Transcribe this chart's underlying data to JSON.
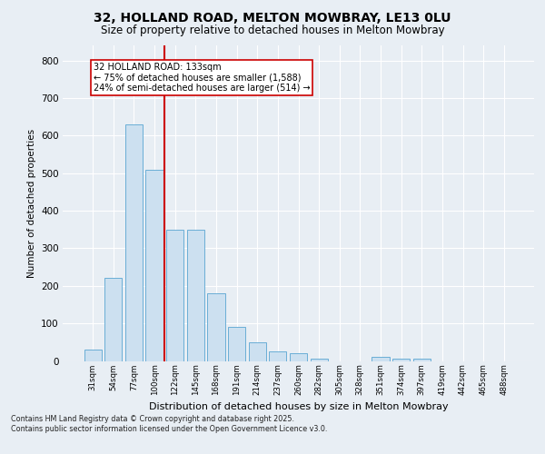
{
  "title": "32, HOLLAND ROAD, MELTON MOWBRAY, LE13 0LU",
  "subtitle": "Size of property relative to detached houses in Melton Mowbray",
  "xlabel": "Distribution of detached houses by size in Melton Mowbray",
  "ylabel": "Number of detached properties",
  "categories": [
    "31sqm",
    "54sqm",
    "77sqm",
    "100sqm",
    "122sqm",
    "145sqm",
    "168sqm",
    "191sqm",
    "214sqm",
    "237sqm",
    "260sqm",
    "282sqm",
    "305sqm",
    "328sqm",
    "351sqm",
    "374sqm",
    "397sqm",
    "419sqm",
    "442sqm",
    "465sqm",
    "488sqm"
  ],
  "values": [
    30,
    220,
    630,
    510,
    350,
    350,
    180,
    90,
    50,
    25,
    20,
    5,
    0,
    0,
    10,
    5,
    5,
    0,
    0,
    0,
    0
  ],
  "bar_color": "#cce0f0",
  "bar_edge_color": "#6aaed6",
  "vline_x": 3.5,
  "vline_color": "#cc0000",
  "annotation_text": "32 HOLLAND ROAD: 133sqm\n← 75% of detached houses are smaller (1,588)\n24% of semi-detached houses are larger (514) →",
  "annotation_box_color": "#cc0000",
  "annotation_text_color": "#000000",
  "ylim": [
    0,
    840
  ],
  "yticks": [
    0,
    100,
    200,
    300,
    400,
    500,
    600,
    700,
    800
  ],
  "background_color": "#e8eef4",
  "grid_color": "#ffffff",
  "footer": "Contains HM Land Registry data © Crown copyright and database right 2025.\nContains public sector information licensed under the Open Government Licence v3.0."
}
